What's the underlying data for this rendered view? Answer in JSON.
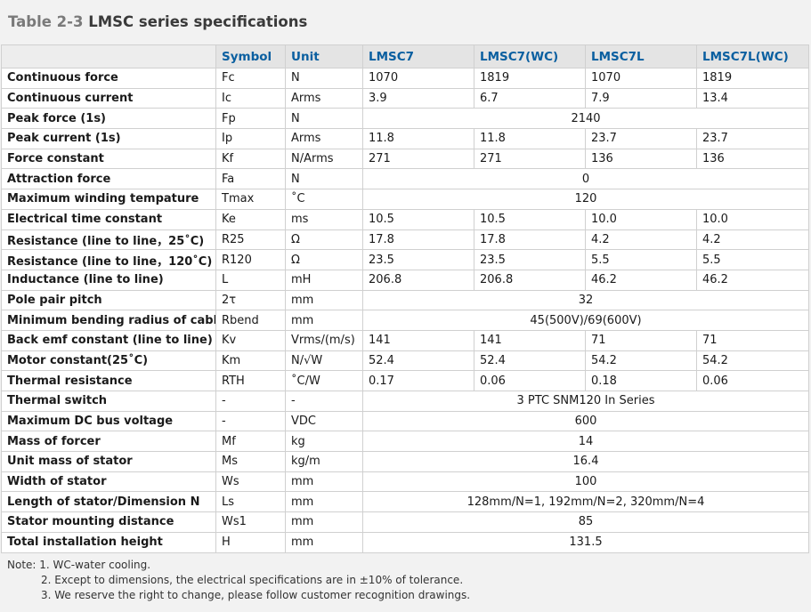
{
  "title": {
    "number": "Table 2-3",
    "text": "LMSC series specifications"
  },
  "headers": [
    "",
    "Symbol",
    "Unit",
    "LMSC7",
    "LMSC7(WC)",
    "LMSC7L",
    "LMSC7L(WC)"
  ],
  "rows": [
    {
      "param": "Continuous force",
      "symbol": "Fc",
      "unit": "N",
      "values": [
        "1070",
        "1819",
        "1070",
        "1819"
      ]
    },
    {
      "param": "Continuous current",
      "symbol": "Ic",
      "unit": "Arms",
      "values": [
        "3.9",
        "6.7",
        "7.9",
        "13.4"
      ]
    },
    {
      "param": "Peak force (1s)",
      "symbol": "Fp",
      "unit": "N",
      "merged": "2140"
    },
    {
      "param": "Peak current (1s)",
      "symbol": "Ip",
      "unit": "Arms",
      "values": [
        "11.8",
        "11.8",
        "23.7",
        "23.7"
      ]
    },
    {
      "param": "Force constant",
      "symbol": "Kf",
      "unit": "N/Arms",
      "values": [
        "271",
        "271",
        "136",
        "136"
      ]
    },
    {
      "param": "Attraction force",
      "symbol": "Fa",
      "unit": "N",
      "merged": "0"
    },
    {
      "param": "Maximum winding tempature",
      "symbol": "Tmax",
      "unit": "˚C",
      "merged": "120"
    },
    {
      "param": "Electrical time constant",
      "symbol": "Ke",
      "unit": "ms",
      "values": [
        "10.5",
        "10.5",
        "10.0",
        "10.0"
      ]
    },
    {
      "param": "Resistance (line to line，25˚C)",
      "symbol": "R25",
      "unit": "Ω",
      "values": [
        "17.8",
        "17.8",
        "4.2",
        "4.2"
      ]
    },
    {
      "param": "Resistance (line to line，120˚C)",
      "symbol": "R120",
      "unit": "Ω",
      "values": [
        "23.5",
        "23.5",
        "5.5",
        "5.5"
      ]
    },
    {
      "param": "Inductance (line to line)",
      "symbol": "L",
      "unit": "mH",
      "values": [
        "206.8",
        "206.8",
        "46.2",
        "46.2"
      ]
    },
    {
      "param": "Pole pair pitch",
      "symbol": "2τ",
      "unit": "mm",
      "merged": "32"
    },
    {
      "param": "Minimum bending radius of  cable",
      "symbol": "Rbend",
      "unit": "mm",
      "merged": "45(500V)/69(600V)"
    },
    {
      "param": "Back emf constant (line to line)",
      "symbol": "Kv",
      "unit": "Vrms/(m/s)",
      "values": [
        "141",
        "141",
        "71",
        "71"
      ]
    },
    {
      "param": "Motor constant(25˚C)",
      "symbol": "Km",
      "unit": "N/√W",
      "values": [
        "52.4",
        "52.4",
        "54.2",
        "54.2"
      ]
    },
    {
      "param": "Thermal resistance",
      "symbol": "RTH",
      "unit": "˚C/W",
      "values": [
        "0.17",
        "0.06",
        "0.18",
        "0.06"
      ]
    },
    {
      "param": "Thermal switch",
      "symbol": "-",
      "unit": "-",
      "merged": "3 PTC SNM120 In Series"
    },
    {
      "param": "Maximum DC bus voltage",
      "symbol": "-",
      "unit": "VDC",
      "merged": "600"
    },
    {
      "param": "Mass of forcer",
      "symbol": "Mf",
      "unit": "kg",
      "merged": "14"
    },
    {
      "param": "Unit mass of stator",
      "symbol": "Ms",
      "unit": "kg/m",
      "merged": "16.4"
    },
    {
      "param": "Width of stator",
      "symbol": "Ws",
      "unit": "mm",
      "merged": "100"
    },
    {
      "param": "Length of stator/Dimension N",
      "symbol": "Ls",
      "unit": "mm",
      "merged": "128mm/N=1, 192mm/N=2, 320mm/N=4"
    },
    {
      "param": "Stator mounting distance",
      "symbol": "Ws1",
      "unit": "mm",
      "merged": "85"
    },
    {
      "param": "Total installation height",
      "symbol": "H",
      "unit": "mm",
      "merged": "131.5"
    }
  ],
  "notes": [
    "Note: 1. WC-water cooling.",
    "2. Except to dimensions, the electrical specifications are in ±10% of tolerance.",
    "3. We reserve the right to change, please follow customer recognition drawings."
  ]
}
